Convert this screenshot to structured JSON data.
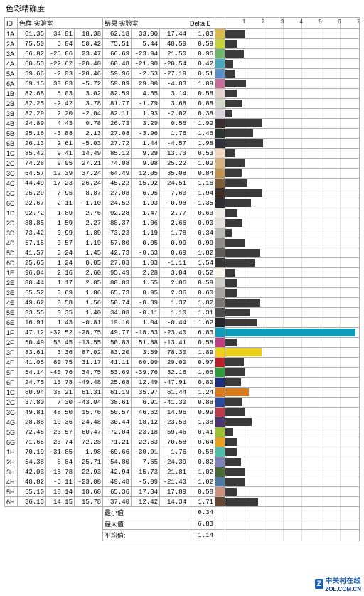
{
  "title": "色彩精确度",
  "columns": {
    "id": "ID",
    "sample": "色样 实验室",
    "result": "结果 实验室",
    "delta": "Delta E"
  },
  "chart": {
    "xmax": 7,
    "ticks": [
      1,
      2,
      3,
      4,
      5,
      6,
      7
    ],
    "bar_default_color": "#3a3a3a"
  },
  "summary": {
    "min_label": "最小值",
    "min": "0.34",
    "max_label": "最大值",
    "max": "6.83",
    "avg_label": "平均值:",
    "avg": "1.14"
  },
  "watermark": {
    "brand": "中关村在线",
    "url": "ZOL.COM.CN"
  },
  "rows": [
    {
      "id": "1A",
      "s": [
        "61.35",
        "34.81",
        "18.38"
      ],
      "r": [
        "62.18",
        "33.00",
        "17.44"
      ],
      "d": "1.03",
      "sw": "#d9b84c"
    },
    {
      "id": "2A",
      "s": [
        "75.50",
        "5.84",
        "50.42"
      ],
      "r": [
        "75.51",
        "5.44",
        "48.59"
      ],
      "d": "0.59",
      "sw": "#c7d23b"
    },
    {
      "id": "3A",
      "s": [
        "66.82",
        "-25.06",
        "23.47"
      ],
      "r": [
        "66.69",
        "-23.94",
        "21.50"
      ],
      "d": "0.96",
      "sw": "#6fb56e"
    },
    {
      "id": "4A",
      "s": [
        "60.53",
        "-22.62",
        "-20.40"
      ],
      "r": [
        "60.48",
        "-21.90",
        "-20.54"
      ],
      "d": "0.42",
      "sw": "#4aa7b9"
    },
    {
      "id": "5A",
      "s": [
        "59.66",
        "-2.03",
        "-28.46"
      ],
      "r": [
        "59.96",
        "-2.53",
        "-27.19"
      ],
      "d": "0.51",
      "sw": "#5a8ec4"
    },
    {
      "id": "6A",
      "s": [
        "59.15",
        "30.83",
        "-5.72"
      ],
      "r": [
        "59.89",
        "29.08",
        "-4.83"
      ],
      "d": "1.09",
      "sw": "#c46f9a"
    },
    {
      "id": "1B",
      "s": [
        "82.68",
        "5.03",
        "3.02"
      ],
      "r": [
        "82.59",
        "4.55",
        "3.14"
      ],
      "d": "0.58",
      "sw": "#e6d4d0"
    },
    {
      "id": "2B",
      "s": [
        "82.25",
        "-2.42",
        "3.78"
      ],
      "r": [
        "81.77",
        "-1.79",
        "3.68"
      ],
      "d": "0.88",
      "sw": "#d2dacd"
    },
    {
      "id": "3B",
      "s": [
        "82.29",
        "2.20",
        "-2.04"
      ],
      "r": [
        "82.11",
        "1.93",
        "-2.02"
      ],
      "d": "0.38",
      "sw": "#dcd4df"
    },
    {
      "id": "4B",
      "s": [
        "24.89",
        "4.43",
        "0.78"
      ],
      "r": [
        "26.73",
        "3.29",
        "0.56"
      ],
      "d": "1.92",
      "sw": "#3a2f30"
    },
    {
      "id": "5B",
      "s": [
        "25.16",
        "-3.88",
        "2.13"
      ],
      "r": [
        "27.08",
        "-3.96",
        "1.76"
      ],
      "d": "1.46",
      "sw": "#2c3630"
    },
    {
      "id": "6B",
      "s": [
        "26.13",
        "2.61",
        "-5.03"
      ],
      "r": [
        "27.72",
        "1.44",
        "-4.57"
      ],
      "d": "1.98",
      "sw": "#32303c"
    },
    {
      "id": "1C",
      "s": [
        "85.42",
        "9.41",
        "14.49"
      ],
      "r": [
        "85.12",
        "9.29",
        "13.73"
      ],
      "d": "0.53",
      "sw": "#f4d7c0"
    },
    {
      "id": "2C",
      "s": [
        "74.28",
        "9.05",
        "27.21"
      ],
      "r": [
        "74.08",
        "9.08",
        "25.22"
      ],
      "d": "1.02",
      "sw": "#d8b37f"
    },
    {
      "id": "3C",
      "s": [
        "64.57",
        "12.39",
        "37.24"
      ],
      "r": [
        "64.49",
        "12.05",
        "35.08"
      ],
      "d": "0.84",
      "sw": "#bf924f"
    },
    {
      "id": "4C",
      "s": [
        "44.49",
        "17.23",
        "26.24"
      ],
      "r": [
        "45.22",
        "15.92",
        "24.51"
      ],
      "d": "1.16",
      "sw": "#7b5a36"
    },
    {
      "id": "5C",
      "s": [
        "25.29",
        "7.95",
        "8.87"
      ],
      "r": [
        "27.08",
        "6.95",
        "7.63"
      ],
      "d": "1.94",
      "sw": "#3f2e26"
    },
    {
      "id": "6C",
      "s": [
        "22.67",
        "2.11",
        "-1.10"
      ],
      "r": [
        "24.52",
        "1.93",
        "-0.98"
      ],
      "d": "1.35",
      "sw": "#312e31"
    },
    {
      "id": "1D",
      "s": [
        "92.72",
        "1.89",
        "2.76"
      ],
      "r": [
        "92.28",
        "1.47",
        "2.77"
      ],
      "d": "0.63",
      "sw": "#f1ece6"
    },
    {
      "id": "2D",
      "s": [
        "88.85",
        "1.59",
        "2.27"
      ],
      "r": [
        "88.37",
        "1.06",
        "2.66"
      ],
      "d": "0.90",
      "sw": "#e5e1db"
    },
    {
      "id": "3D",
      "s": [
        "73.42",
        "0.99",
        "1.89"
      ],
      "r": [
        "73.23",
        "1.19",
        "1.78"
      ],
      "d": "0.34",
      "sw": "#bcb9b4"
    },
    {
      "id": "4D",
      "s": [
        "57.15",
        "0.57",
        "1.19"
      ],
      "r": [
        "57.80",
        "0.05",
        "0.99"
      ],
      "d": "0.99",
      "sw": "#8e8c89"
    },
    {
      "id": "5D",
      "s": [
        "41.57",
        "0.24",
        "1.45"
      ],
      "r": [
        "42.73",
        "-0.63",
        "0.69"
      ],
      "d": "1.82",
      "sw": "#5e5d5a"
    },
    {
      "id": "6D",
      "s": [
        "25.65",
        "1.24",
        "0.05"
      ],
      "r": [
        "27.03",
        "1.03",
        "-1.11"
      ],
      "d": "1.54",
      "sw": "#363434"
    },
    {
      "id": "1E",
      "s": [
        "96.04",
        "2.16",
        "2.60"
      ],
      "r": [
        "95.49",
        "2.28",
        "3.04"
      ],
      "d": "0.52",
      "sw": "#fbf4ed"
    },
    {
      "id": "2E",
      "s": [
        "80.44",
        "1.17",
        "2.05"
      ],
      "r": [
        "80.03",
        "1.55",
        "2.06"
      ],
      "d": "0.59",
      "sw": "#cfccc7"
    },
    {
      "id": "3E",
      "s": [
        "65.52",
        "0.69",
        "1.86"
      ],
      "r": [
        "65.73",
        "0.95",
        "2.36"
      ],
      "d": "0.60",
      "sw": "#a6a39e"
    },
    {
      "id": "4E",
      "s": [
        "49.62",
        "0.58",
        "1.56"
      ],
      "r": [
        "50.74",
        "-0.39",
        "1.37"
      ],
      "d": "1.82",
      "sw": "#787773"
    },
    {
      "id": "5E",
      "s": [
        "33.55",
        "0.35",
        "1.40"
      ],
      "r": [
        "34.88",
        "-0.11",
        "1.10"
      ],
      "d": "1.31",
      "sw": "#4c4b48"
    },
    {
      "id": "6E",
      "s": [
        "16.91",
        "1.43",
        "-0.81"
      ],
      "r": [
        "19.10",
        "1.04",
        "-0.44"
      ],
      "d": "1.62",
      "sw": "#262527"
    },
    {
      "id": "1F",
      "s": [
        "47.12",
        "-32.52",
        "-28.75"
      ],
      "r": [
        "49.77",
        "-18.53",
        "-23.40"
      ],
      "d": "6.83",
      "sw": "#0d9bb7",
      "bar": "#0d9bb7"
    },
    {
      "id": "2F",
      "s": [
        "50.49",
        "53.45",
        "-13.55"
      ],
      "r": [
        "50.83",
        "51.88",
        "-13.41"
      ],
      "d": "0.58",
      "sw": "#c23e82"
    },
    {
      "id": "3F",
      "s": [
        "83.61",
        "3.36",
        "87.02"
      ],
      "r": [
        "83.20",
        "3.59",
        "78.30"
      ],
      "d": "1.89",
      "sw": "#ecd11a",
      "bar": "#ecd11a"
    },
    {
      "id": "4F",
      "s": [
        "41.05",
        "60.75",
        "31.17"
      ],
      "r": [
        "41.11",
        "60.09",
        "29.00"
      ],
      "d": "0.97",
      "sw": "#b5202a"
    },
    {
      "id": "5F",
      "s": [
        "54.14",
        "-40.76",
        "34.75"
      ],
      "r": [
        "53.69",
        "-39.76",
        "32.16"
      ],
      "d": "1.06",
      "sw": "#2f9a3a"
    },
    {
      "id": "6F",
      "s": [
        "24.75",
        "13.78",
        "-49.48"
      ],
      "r": [
        "25.68",
        "12.49",
        "-47.91"
      ],
      "d": "0.80",
      "sw": "#1b2e80"
    },
    {
      "id": "1G",
      "s": [
        "60.94",
        "38.21",
        "61.31"
      ],
      "r": [
        "61.19",
        "35.97",
        "61.44"
      ],
      "d": "1.24",
      "sw": "#d97a1c",
      "bar": "#d97a1c"
    },
    {
      "id": "2G",
      "s": [
        "37.80",
        "7.30",
        "-43.04"
      ],
      "r": [
        "38.61",
        "6.91",
        "-41.30"
      ],
      "d": "0.88",
      "sw": "#2a4a99"
    },
    {
      "id": "3G",
      "s": [
        "49.81",
        "48.50",
        "15.76"
      ],
      "r": [
        "50.57",
        "46.62",
        "14.96"
      ],
      "d": "0.99",
      "sw": "#bd3c4a"
    },
    {
      "id": "4G",
      "s": [
        "28.88",
        "19.36",
        "-24.48"
      ],
      "r": [
        "30.44",
        "18.12",
        "-23.53"
      ],
      "d": "1.38",
      "sw": "#4b3670"
    },
    {
      "id": "5G",
      "s": [
        "72.45",
        "-23.57",
        "60.47"
      ],
      "r": [
        "72.04",
        "-23.18",
        "59.46"
      ],
      "d": "0.41",
      "sw": "#9bc22f"
    },
    {
      "id": "6G",
      "s": [
        "71.65",
        "23.74",
        "72.28"
      ],
      "r": [
        "71.21",
        "22.63",
        "70.58"
      ],
      "d": "0.64",
      "sw": "#e6a41e"
    },
    {
      "id": "1H",
      "s": [
        "70.19",
        "-31.85",
        "1.98"
      ],
      "r": [
        "69.66",
        "-30.91",
        "1.76"
      ],
      "d": "0.58",
      "sw": "#4fbfa9"
    },
    {
      "id": "2H",
      "s": [
        "54.38",
        "8.84",
        "-25.71"
      ],
      "r": [
        "54.80",
        "7.65",
        "-24.39"
      ],
      "d": "0.82",
      "sw": "#7d82b8"
    },
    {
      "id": "3H",
      "s": [
        "42.03",
        "-15.78",
        "22.93"
      ],
      "r": [
        "42.94",
        "-15.73",
        "21.81"
      ],
      "d": "1.02",
      "sw": "#4a6a39"
    },
    {
      "id": "4H",
      "s": [
        "48.82",
        "-5.11",
        "-23.08"
      ],
      "r": [
        "49.48",
        "-5.09",
        "-21.40"
      ],
      "d": "1.02",
      "sw": "#4c7aa3"
    },
    {
      "id": "5H",
      "s": [
        "65.10",
        "18.14",
        "18.68"
      ],
      "r": [
        "65.36",
        "17.34",
        "17.89"
      ],
      "d": "0.58",
      "sw": "#cb8f7b"
    },
    {
      "id": "6H",
      "s": [
        "36.13",
        "14.15",
        "15.78"
      ],
      "r": [
        "37.40",
        "12.42",
        "14.34"
      ],
      "d": "1.71",
      "sw": "#644634"
    }
  ]
}
